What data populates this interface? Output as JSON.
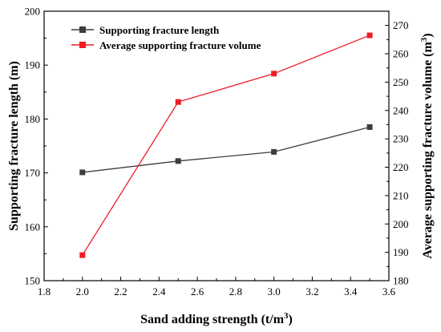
{
  "chart_data": {
    "type": "line",
    "x": [
      2.0,
      2.5,
      3.0,
      3.5
    ],
    "x_range": [
      1.8,
      3.6
    ],
    "x_ticks": [
      "1.8",
      "2.0",
      "2.2",
      "2.4",
      "2.6",
      "2.8",
      "3.0",
      "3.2",
      "3.4",
      "3.6"
    ],
    "xlabel": {
      "main": "Sand adding strength (t/m",
      "sup": "3",
      "tail": ")"
    },
    "y_left": {
      "label": "Supporting fracture length (m)",
      "range": [
        150,
        200
      ],
      "ticks": [
        "150",
        "160",
        "170",
        "180",
        "190",
        "200"
      ]
    },
    "y_right": {
      "label": {
        "main": "Average supporting fracture volume (m",
        "sup": "3",
        "tail": ")"
      },
      "range": [
        180,
        275
      ],
      "ticks": [
        "180",
        "190",
        "200",
        "210",
        "220",
        "230",
        "240",
        "250",
        "260",
        "270"
      ]
    },
    "series": [
      {
        "name": "Supporting fracture length",
        "axis": "left",
        "color": "#3d3d3d",
        "marker": "square",
        "values": [
          170.1,
          172.2,
          173.9,
          178.5
        ]
      },
      {
        "name": "Average supporting fracture volume",
        "axis": "right",
        "color": "#ee1c25",
        "marker": "square",
        "values": [
          189.0,
          243.0,
          253.0,
          266.5
        ]
      }
    ],
    "legend": {
      "placement": "top-left"
    },
    "grid": false
  }
}
